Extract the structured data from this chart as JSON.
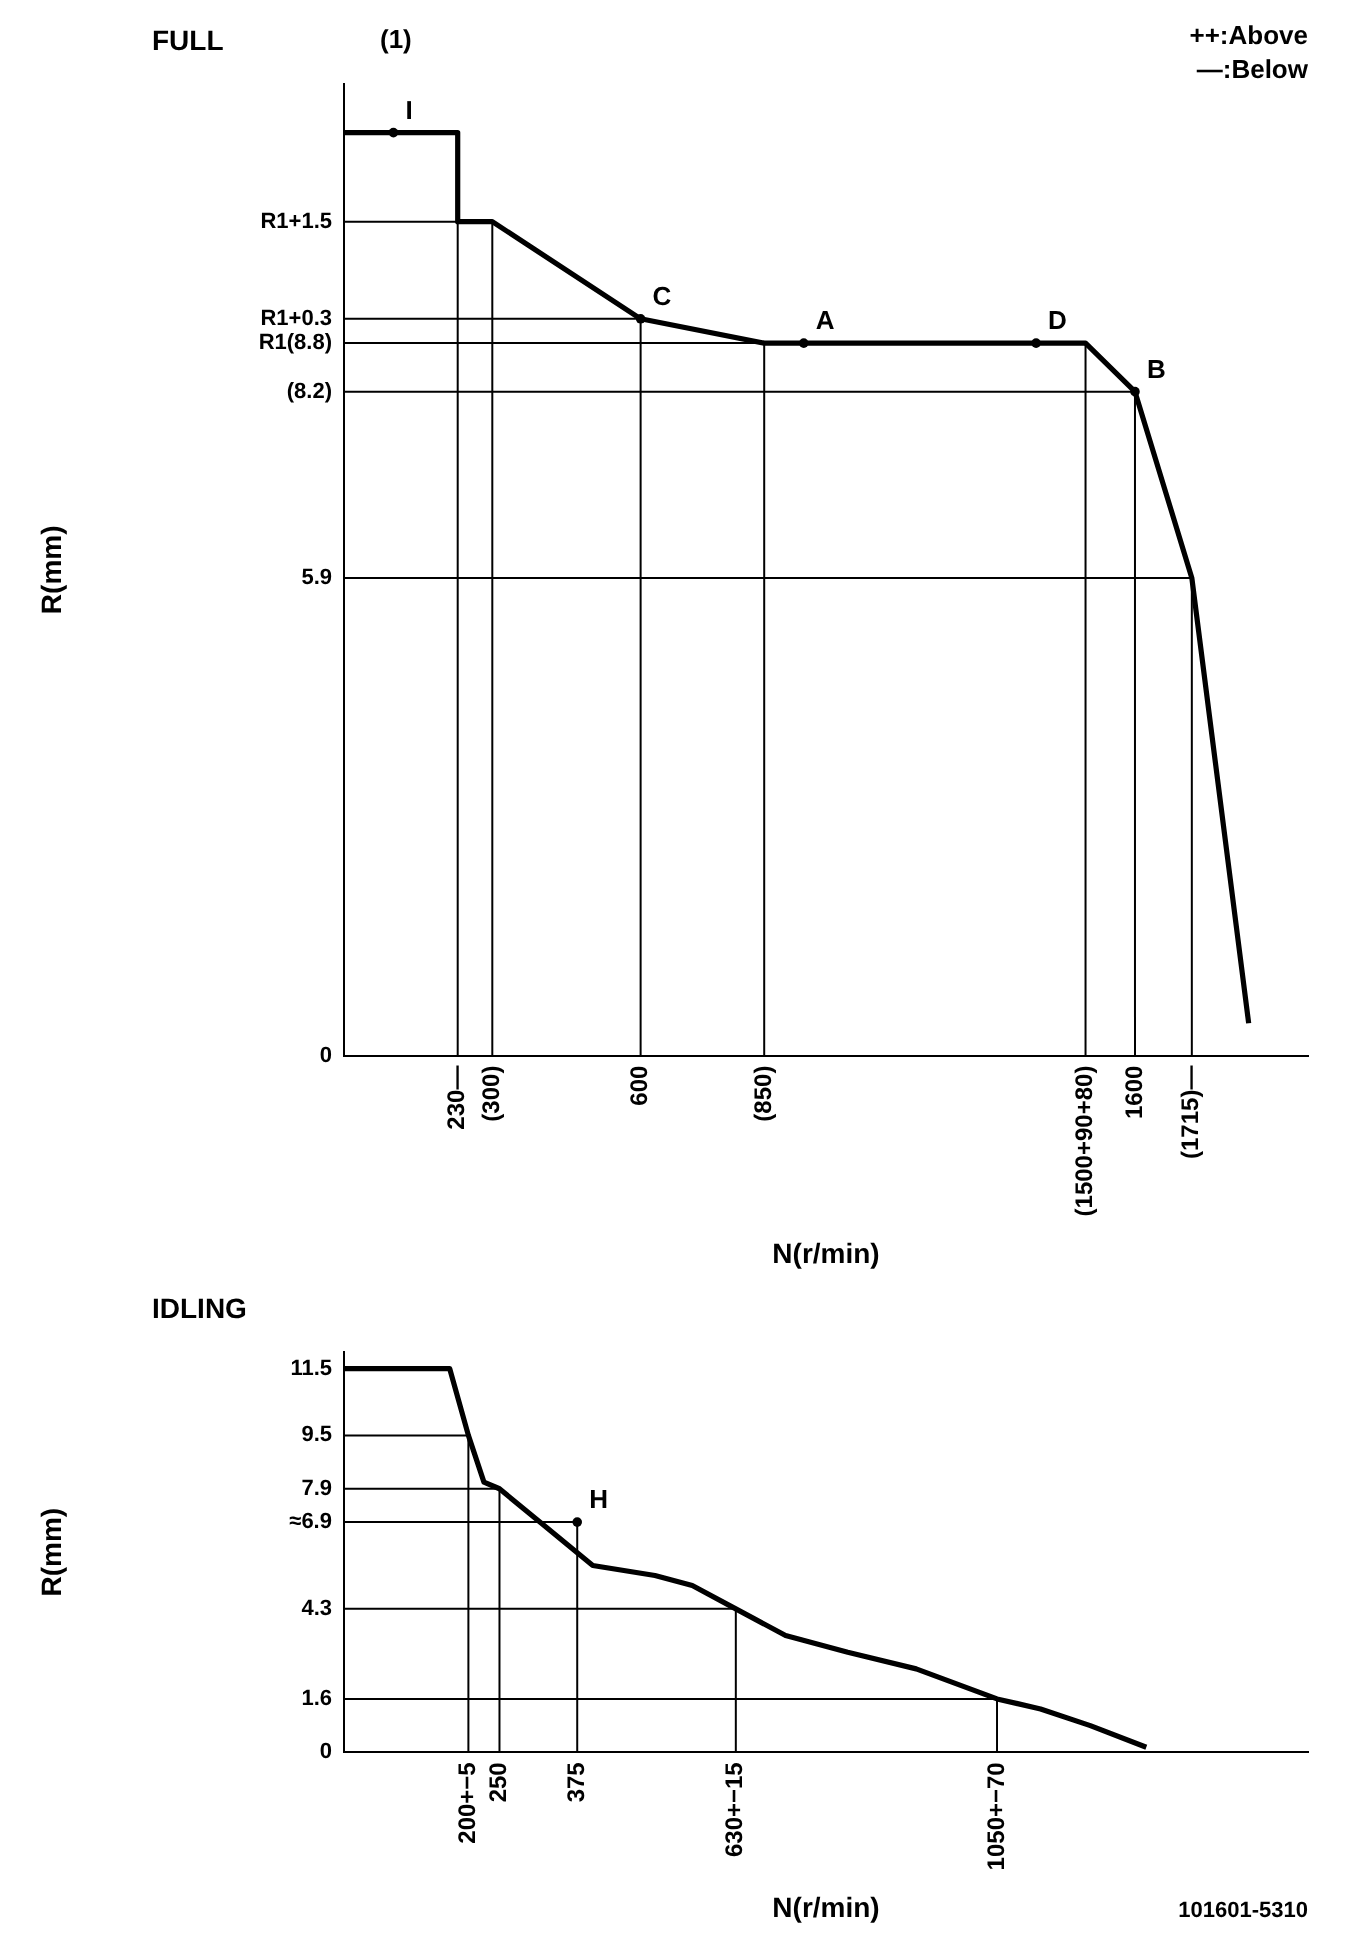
{
  "chart_data": [
    {
      "type": "line",
      "title": "FULL",
      "subtitle": "(1)",
      "xlabel": "N(r/min)",
      "ylabel": "R(mm)",
      "xlim": [
        0,
        1950
      ],
      "ylim": [
        0,
        12
      ],
      "xticks": [
        {
          "value": 230,
          "label": "230—"
        },
        {
          "value": 300,
          "label": "(300)"
        },
        600,
        {
          "value": 850,
          "label": "(850)"
        },
        {
          "value": 1500,
          "label": "(1500+90+80)"
        },
        1600,
        {
          "value": 1715,
          "label": "(1715)—"
        }
      ],
      "yticks": [
        0,
        5.9,
        {
          "value": 8.2,
          "label": "(8.2)"
        },
        {
          "value": 8.8,
          "label": "R1(8.8)"
        },
        {
          "value": 9.1,
          "label": "R1+0.3"
        },
        {
          "value": 10.3,
          "label": "R1+1.5"
        }
      ],
      "series": [
        {
          "color": "#000000",
          "x": [
            0,
            230,
            230,
            300,
            600,
            850,
            1500,
            1600,
            1715,
            1830
          ],
          "values": [
            11.4,
            11.4,
            10.3,
            10.3,
            9.1,
            8.8,
            8.8,
            8.2,
            5.9,
            0.4
          ]
        },
        {
          "color": "#000000",
          "x": [
            0,
            300,
            300
          ],
          "values": [
            10.3,
            10.3,
            0
          ]
        },
        {
          "color": "#000000",
          "x": [
            230,
            230
          ],
          "values": [
            10.3,
            0
          ]
        },
        {
          "color": "#000000",
          "x": [
            0,
            600,
            600
          ],
          "values": [
            9.1,
            9.1,
            0
          ]
        },
        {
          "color": "#000000",
          "x": [
            0,
            850,
            850
          ],
          "values": [
            8.8,
            8.8,
            0
          ]
        },
        {
          "color": "#000000",
          "x": [
            1500,
            1500
          ],
          "values": [
            8.8,
            0
          ]
        },
        {
          "color": "#000000",
          "x": [
            0,
            1600,
            1600
          ],
          "values": [
            8.2,
            8.2,
            0
          ]
        },
        {
          "color": "#000000",
          "x": [
            0,
            1715,
            1715
          ],
          "values": [
            5.9,
            5.9,
            0
          ]
        }
      ],
      "annotations": [
        {
          "text": "I",
          "x": 100,
          "y": 11.4
        },
        {
          "text": "C",
          "x": 600,
          "y": 9.1
        },
        {
          "text": "A",
          "x": 930,
          "y": 8.8
        },
        {
          "text": "D",
          "x": 1400,
          "y": 8.8
        },
        {
          "text": "B",
          "x": 1600,
          "y": 8.2
        },
        "++:Above",
        "—:Below"
      ]
    },
    {
      "type": "line",
      "title": "IDLING",
      "xlabel": "N(r/min)",
      "ylabel": "R(mm)",
      "xlim": [
        0,
        1550
      ],
      "ylim": [
        0,
        12
      ],
      "xticks": [
        {
          "value": 200,
          "label": "200+−5"
        },
        250,
        375,
        {
          "value": 630,
          "label": "630+−15"
        },
        {
          "value": 1050,
          "label": "1050+−70"
        }
      ],
      "yticks": [
        0,
        1.6,
        4.3,
        {
          "value": 6.9,
          "label": "≈6.9"
        },
        7.9,
        9.5,
        11.5
      ],
      "series": [
        {
          "color": "#000000",
          "x": [
            0,
            170,
            200,
            225,
            250,
            400,
            500,
            560,
            630,
            660,
            710,
            810,
            920,
            1050,
            1120,
            1200,
            1290
          ],
          "values": [
            11.5,
            11.5,
            9.5,
            8.1,
            7.9,
            5.6,
            5.3,
            5.0,
            4.3,
            4.0,
            3.5,
            3.0,
            2.5,
            1.6,
            1.3,
            0.8,
            0.15
          ]
        },
        {
          "color": "#000000",
          "x": [
            0,
            200,
            200
          ],
          "values": [
            9.5,
            9.5,
            0
          ]
        },
        {
          "color": "#000000",
          "x": [
            0,
            250,
            250
          ],
          "values": [
            7.9,
            7.9,
            0
          ]
        },
        {
          "color": "#000000",
          "x": [
            0,
            375,
            375
          ],
          "values": [
            6.9,
            6.9,
            0
          ]
        },
        {
          "color": "#000000",
          "x": [
            0,
            630,
            630
          ],
          "values": [
            4.3,
            4.3,
            0
          ]
        },
        {
          "color": "#000000",
          "x": [
            0,
            1050,
            1050
          ],
          "values": [
            1.6,
            1.6,
            0
          ]
        }
      ],
      "annotations": [
        {
          "text": "H",
          "x": 375,
          "y": 6.9
        },
        "101601-5310"
      ]
    }
  ]
}
